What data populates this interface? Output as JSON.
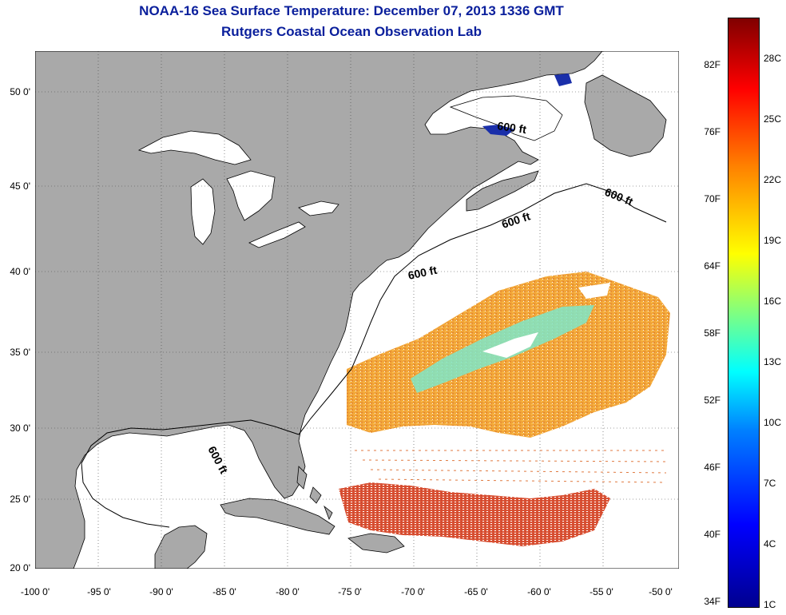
{
  "title_line1": "NOAA-16 Sea Surface Temperature:  December 07, 2013 1336 GMT",
  "title_line2": "Rutgers Coastal Ocean Observation Lab",
  "lat_labels": [
    "50 0'",
    "45 0'",
    "40 0'",
    "35 0'",
    "30 0'",
    "25 0'",
    "20 0'"
  ],
  "lon_labels": [
    "-100 0'",
    "-95 0'",
    "-90 0'",
    "-85 0'",
    "-80 0'",
    "-75 0'",
    "-70 0'",
    "-65 0'",
    "-60 0'",
    "-55 0'",
    "-50 0'"
  ],
  "contour_label": "600 ft",
  "colorbar": {
    "fahrenheit": [
      "82F",
      "76F",
      "70F",
      "64F",
      "58F",
      "52F",
      "46F",
      "40F",
      "34F"
    ],
    "celsius": [
      "28C",
      "25C",
      "22C",
      "19C",
      "16C",
      "13C",
      "10C",
      "7C",
      "4C",
      "1C"
    ]
  },
  "colors": {
    "land": "#a9a9a9",
    "ocean_no_data": "#ffffff",
    "title": "#0a1f9c",
    "warm_water": "#e8932a",
    "tropical_water": "#d0402a",
    "cool_water": "#7fe6c8"
  }
}
